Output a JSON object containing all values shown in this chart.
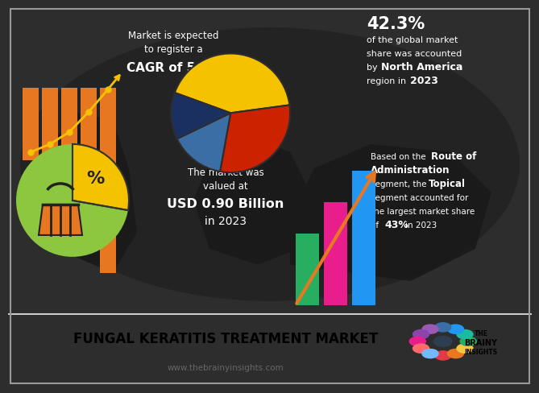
{
  "bg_dark": "#2d2d2d",
  "bg_light": "#ffffff",
  "title_text": "FUNGAL KERATITIS TREATMENT MARKET",
  "website": "www.thebrainyinsights.com",
  "cagr_line1": "Market is expected",
  "cagr_line2": "to register a",
  "cagr_bold": "CAGR of 5.1%",
  "pie_pct": "42.3%",
  "pie_text1": "of the global market",
  "pie_text2": "share was accounted",
  "pie_bold": "North America",
  "pie_year": "2023",
  "market_line1": "The market was",
  "market_line2": "valued at",
  "market_bold": "USD 0.90 Billion",
  "market_line3": "in 2023",
  "route_bold1": "Route of",
  "route_bold2": "Administration",
  "route_bold3": "Topical",
  "route_pct": "43%",
  "pie_colors": [
    "#f5c200",
    "#cc2200",
    "#3a6ea5",
    "#1a2e50"
  ],
  "pie_sizes": [
    42.3,
    30.0,
    15.0,
    12.7
  ],
  "bar_colors_left": [
    "#e87722",
    "#e87722",
    "#e87722",
    "#e87722",
    "#e87722"
  ],
  "bar_colors_right": [
    "#27ae60",
    "#e91e8c",
    "#2196f3"
  ],
  "arrow_color": "#e87722",
  "line_color": "#f5c200",
  "green_circle": "#8dc63f",
  "yellow_wedge": "#f5c200",
  "basket_color": "#e87722"
}
